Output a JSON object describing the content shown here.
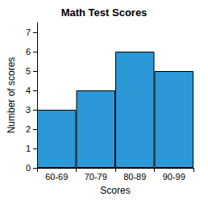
{
  "chart_data": {
    "type": "bar",
    "title": "Math Test Scores",
    "x_label": "Scores",
    "y_label": "Number of scores",
    "categories": [
      "60-69",
      "70-79",
      "80-89",
      "90-99"
    ],
    "values": [
      3,
      4,
      6,
      5
    ],
    "color": "#2b98d8",
    "ylim": [
      0,
      7.5
    ],
    "yticks": [
      0,
      1,
      2,
      3,
      4,
      5,
      6,
      7
    ],
    "grid": false
  }
}
